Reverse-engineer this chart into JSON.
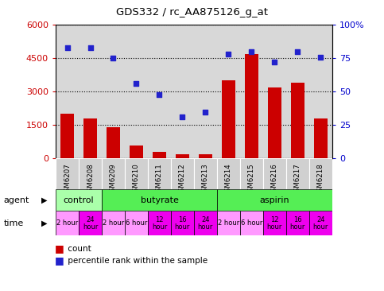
{
  "title": "GDS332 / rc_AA875126_g_at",
  "samples": [
    "GSM6207",
    "GSM6208",
    "GSM6209",
    "GSM6210",
    "GSM6211",
    "GSM6212",
    "GSM6213",
    "GSM6214",
    "GSM6215",
    "GSM6216",
    "GSM6217",
    "GSM6218"
  ],
  "counts": [
    2000,
    1800,
    1400,
    600,
    300,
    200,
    200,
    3500,
    4700,
    3200,
    3400,
    1800
  ],
  "percentiles": [
    83,
    83,
    75,
    56,
    48,
    31,
    35,
    78,
    80,
    72,
    80,
    76
  ],
  "ylim_left": [
    0,
    6000
  ],
  "ylim_right": [
    0,
    100
  ],
  "yticks_left": [
    0,
    1500,
    3000,
    4500,
    6000
  ],
  "yticks_right": [
    0,
    25,
    50,
    75,
    100
  ],
  "yticklabels_right": [
    "0",
    "25",
    "50",
    "75",
    "100%"
  ],
  "bar_color": "#cc0000",
  "dot_color": "#2222cc",
  "light_pink": "#ff99ff",
  "dark_pink": "#ee00ee",
  "tick_label_color_left": "#cc0000",
  "tick_label_color_right": "#0000cc",
  "agent_groups": [
    {
      "label": "control",
      "start": 0,
      "end": 2,
      "color": "#aaffaa"
    },
    {
      "label": "butyrate",
      "start": 2,
      "end": 7,
      "color": "#55ee55"
    },
    {
      "label": "aspirin",
      "start": 7,
      "end": 12,
      "color": "#55ee55"
    }
  ],
  "time_row": [
    {
      "label": "2 hour",
      "start": 0,
      "end": 1,
      "highlight": false
    },
    {
      "label": "24\nhour",
      "start": 1,
      "end": 2,
      "highlight": true
    },
    {
      "label": "2 hour",
      "start": 2,
      "end": 3,
      "highlight": false
    },
    {
      "label": "6 hour",
      "start": 3,
      "end": 4,
      "highlight": false
    },
    {
      "label": "12\nhour",
      "start": 4,
      "end": 5,
      "highlight": true
    },
    {
      "label": "16\nhour",
      "start": 5,
      "end": 6,
      "highlight": true
    },
    {
      "label": "24\nhour",
      "start": 6,
      "end": 7,
      "highlight": true
    },
    {
      "label": "2 hour",
      "start": 7,
      "end": 8,
      "highlight": false
    },
    {
      "label": "6 hour",
      "start": 8,
      "end": 9,
      "highlight": false
    },
    {
      "label": "12\nhour",
      "start": 9,
      "end": 10,
      "highlight": true
    },
    {
      "label": "16\nhour",
      "start": 10,
      "end": 11,
      "highlight": true
    },
    {
      "label": "24\nhour",
      "start": 11,
      "end": 12,
      "highlight": true
    }
  ],
  "plot_bg": "#d8d8d8",
  "sample_box_bg": "#d0d0d0"
}
